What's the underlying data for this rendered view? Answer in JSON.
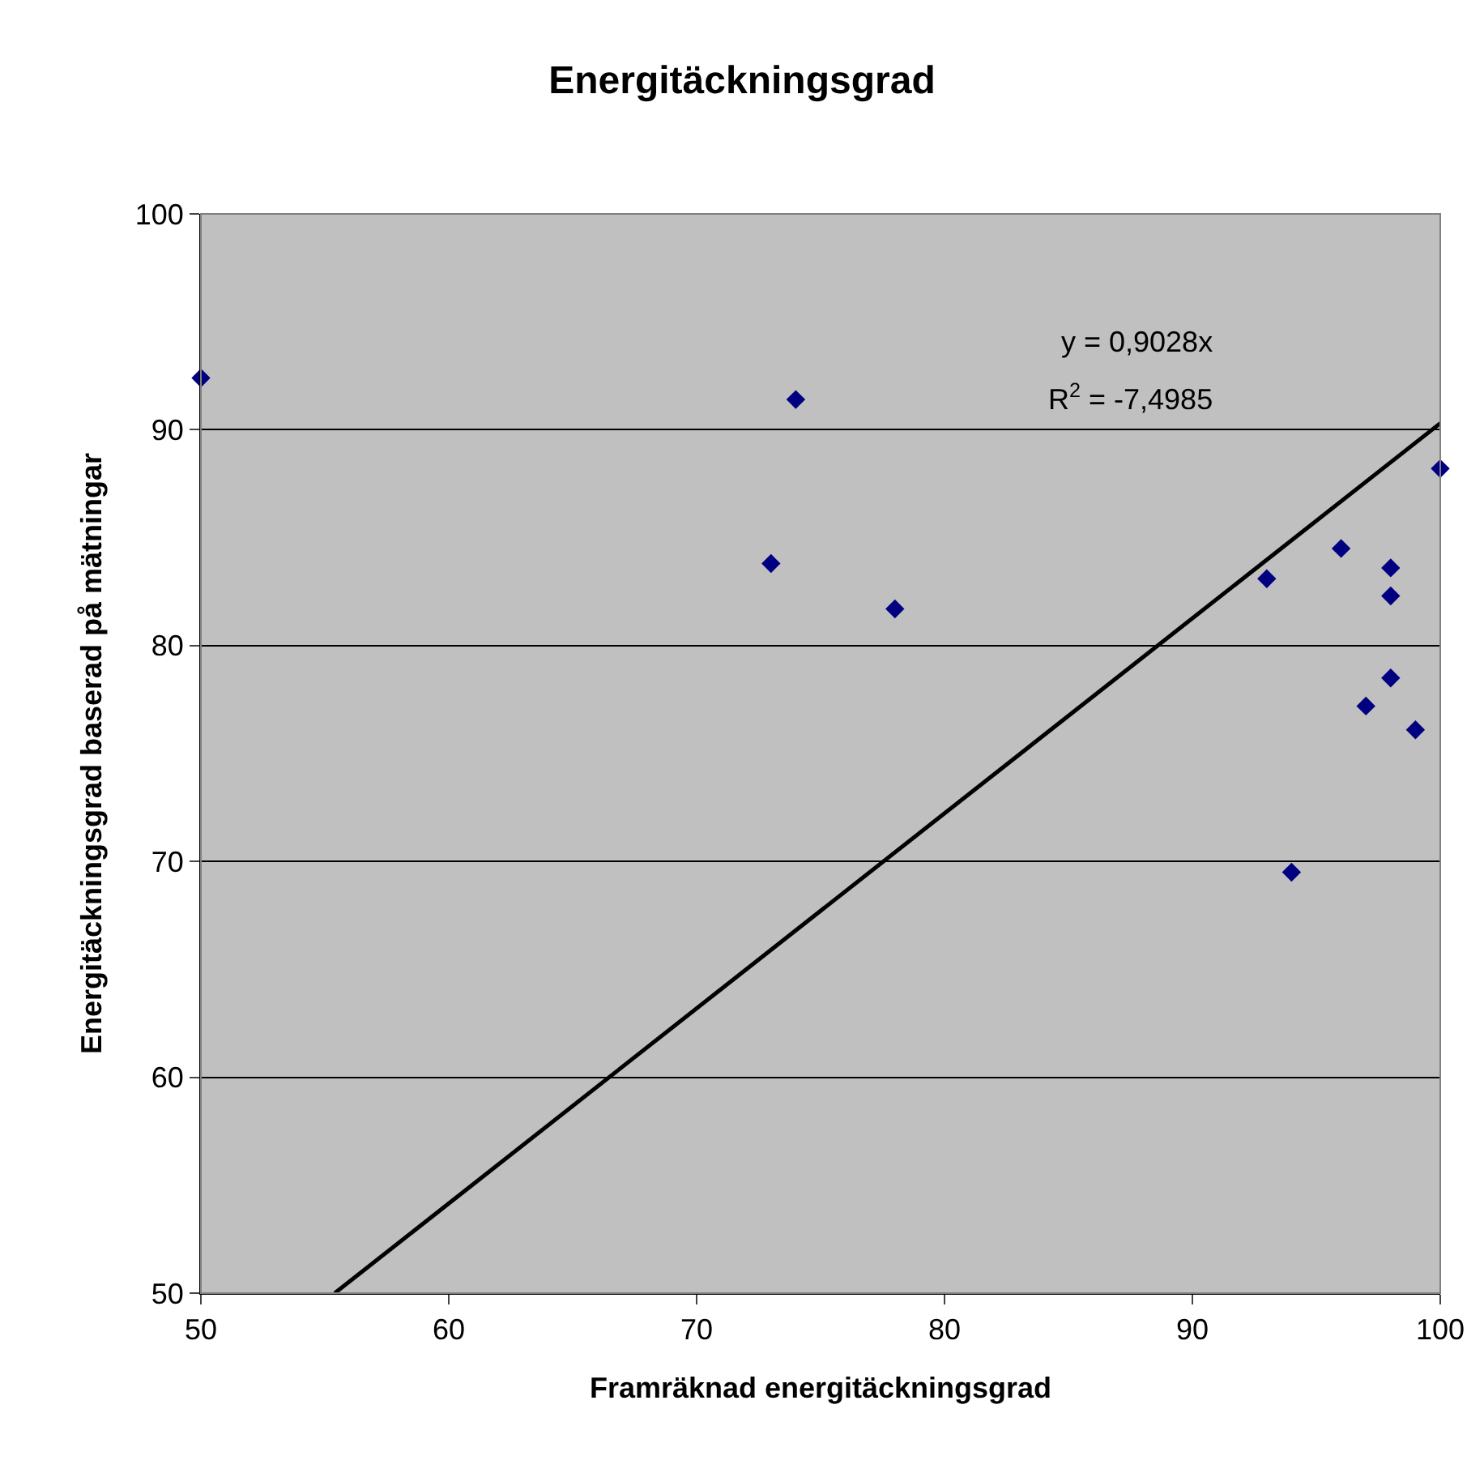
{
  "chart_data": {
    "type": "scatter",
    "title": "Energitäckningsgrad",
    "xlabel": "Framräknad energitäckningsgrad",
    "ylabel": "Energitäckningsgrad baserad på mätningar",
    "series": [
      {
        "color": "#000080",
        "marker": "diamond",
        "x": [
          50,
          74,
          73,
          78,
          100,
          96,
          93,
          98,
          98,
          98,
          97,
          99,
          94
        ],
        "values": [
          92.4,
          91.4,
          83.8,
          81.7,
          88.2,
          84.5,
          83.1,
          83.6,
          82.3,
          78.5,
          77.2,
          76.1,
          69.5
        ]
      },
      {
        "type": "line",
        "color": "#000000",
        "marker": "none",
        "line_style": "solid",
        "x": [
          55.4,
          100
        ],
        "values": [
          50.0,
          90.3
        ]
      }
    ],
    "annotations": [
      "y = 0,9028x",
      "R$^{2}$ = -7,4985"
    ],
    "xlim": [
      50,
      100
    ],
    "xticks": [
      50,
      60,
      70,
      80,
      90,
      100
    ],
    "ylim": [
      50,
      100
    ],
    "yticks": [
      50,
      60,
      70,
      80,
      90,
      100
    ],
    "grid": "y",
    "legend": false
  }
}
